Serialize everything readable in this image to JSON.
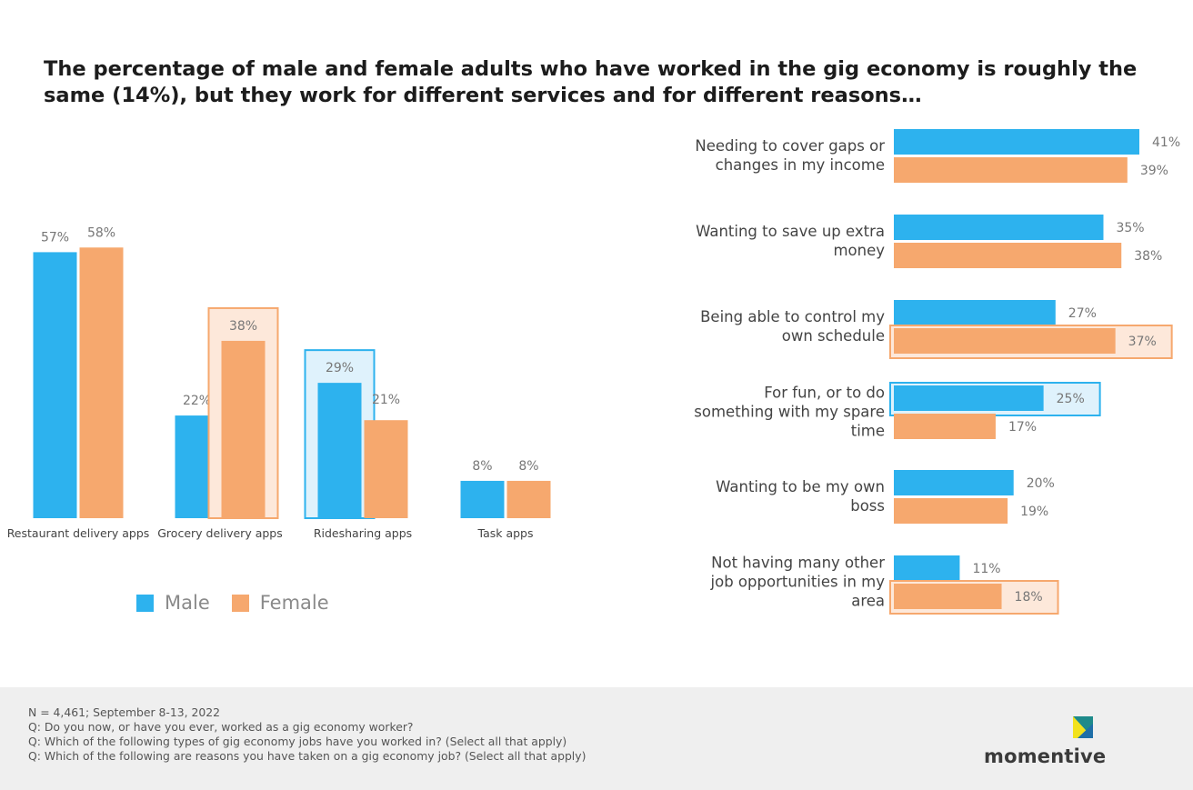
{
  "headline": "The percentage of male and female adults who have worked in the gig economy is roughly the same (14%), but they work for different services and for different reasons…",
  "colors": {
    "male": "#2db2ee",
    "female": "#f6a86e",
    "male_highlight": "#dff2fc",
    "female_highlight": "#fde8da",
    "label": "#777777",
    "category": "#444444"
  },
  "legend": {
    "male": "Male",
    "female": "Female"
  },
  "chart_data": [
    {
      "type": "bar",
      "title": "",
      "categories": [
        "Restaurant delivery apps",
        "Grocery delivery apps",
        "Ridesharing apps",
        "Task apps"
      ],
      "series": [
        {
          "name": "Male",
          "values": [
            57,
            22,
            29,
            8
          ],
          "labels": [
            "57%",
            "22%",
            "29%",
            "8%"
          ]
        },
        {
          "name": "Female",
          "values": [
            58,
            38,
            21,
            8
          ],
          "labels": [
            "58%",
            "38%",
            "21%",
            "8%"
          ]
        }
      ],
      "highlights": [
        {
          "category": "Grocery delivery apps",
          "series": "Female"
        },
        {
          "category": "Ridesharing apps",
          "series": "Male"
        }
      ],
      "ylim": [
        0,
        60
      ],
      "grid": false
    },
    {
      "type": "bar",
      "orientation": "horizontal",
      "title": "",
      "categories": [
        [
          "Needing to cover gaps or",
          "changes in my income"
        ],
        [
          "Wanting to save up extra",
          "money"
        ],
        [
          "Being able to control my",
          "own schedule"
        ],
        [
          "For fun, or to do",
          "something with my spare",
          "time"
        ],
        [
          "Wanting to be my own",
          "boss"
        ],
        [
          "Not having many other",
          "job opportunities in my",
          "area"
        ]
      ],
      "series": [
        {
          "name": "Male",
          "values": [
            41,
            35,
            27,
            25,
            20,
            11
          ],
          "labels": [
            "41%",
            "35%",
            "27%",
            "25%",
            "20%",
            "11%"
          ]
        },
        {
          "name": "Female",
          "values": [
            39,
            38,
            37,
            17,
            19,
            18
          ],
          "labels": [
            "39%",
            "38%",
            "37%",
            "17%",
            "19%",
            "18%"
          ]
        }
      ],
      "highlights": [
        {
          "category": 2,
          "series": "Female"
        },
        {
          "category": 3,
          "series": "Male"
        },
        {
          "category": 5,
          "series": "Female"
        }
      ],
      "xlim": [
        0,
        42
      ],
      "grid": false
    }
  ],
  "notes": [
    "N = 4,461; September 8-13, 2022",
    "Q: Do you now, or have you ever, worked as a gig economy worker?",
    "Q: Which of the following types of gig economy jobs have you worked in? (Select all that apply)",
    "Q:  Which of the following are reasons you have taken on a gig economy job? (Select all that apply)"
  ],
  "logo": {
    "text": "momentive",
    "icon": "momentive-logo-icon"
  }
}
